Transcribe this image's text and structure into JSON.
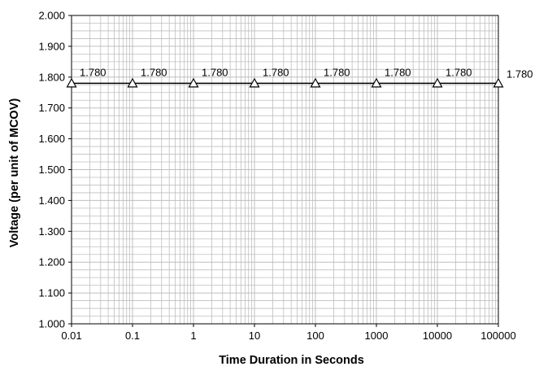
{
  "chart_data": {
    "type": "scatter",
    "x_scale": "log",
    "xlabel": "Time Duration in Seconds",
    "ylabel": "Voltage (per unit of MCOV)",
    "xlim": [
      0.01,
      100000
    ],
    "ylim": [
      1.0,
      2.0
    ],
    "x_tick_labels": [
      "0.01",
      "0.1",
      "1",
      "10",
      "100",
      "1000",
      "10000",
      "100000"
    ],
    "y_tick_labels": [
      "1.000",
      "1.100",
      "1.200",
      "1.300",
      "1.400",
      "1.500",
      "1.600",
      "1.700",
      "1.800",
      "1.900",
      "2.000"
    ],
    "grid": true,
    "legend": "none",
    "marker": "open-triangle",
    "line_color": "#000000",
    "grid_color": "#bfbfbf",
    "series": [
      {
        "x": [
          0.01,
          0.1,
          1,
          10,
          100,
          1000,
          10000,
          100000
        ],
        "y": [
          1.78,
          1.78,
          1.78,
          1.78,
          1.78,
          1.78,
          1.78,
          1.78
        ],
        "data_labels": [
          "1.780",
          "1.780",
          "1.780",
          "1.780",
          "1.780",
          "1.780",
          "1.780",
          "1.780"
        ]
      }
    ]
  }
}
